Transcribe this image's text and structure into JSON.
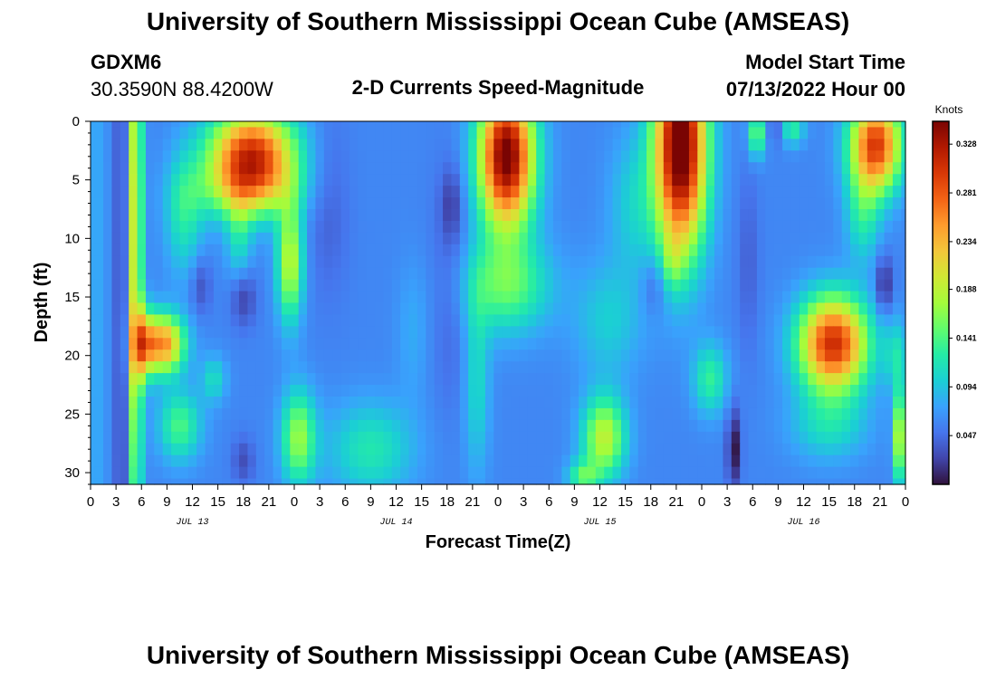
{
  "header": {
    "title": "University of Southern Mississippi Ocean Cube (AMSEAS)",
    "station": "GDXM6",
    "coords": "30.3590N  88.4200W",
    "plot_title": "2-D Currents Speed-Magnitude",
    "start_label": "Model Start Time",
    "start_value": "07/13/2022 Hour 00"
  },
  "footer": {
    "title": "University of Southern Mississippi Ocean Cube (AMSEAS)"
  },
  "colors": {
    "colormap": [
      "#30123b",
      "#4145ab",
      "#4675ed",
      "#39a2fc",
      "#1bcfd4",
      "#24eca6",
      "#61fc6c",
      "#a4fc3b",
      "#d1e834",
      "#f3c63a",
      "#fe9b2d",
      "#f36315",
      "#d93806",
      "#b11901",
      "#7a0403"
    ]
  },
  "chart_data": {
    "type": "heatmap",
    "title": "2-D Currents Speed-Magnitude",
    "xlabel": "Forecast Time(Z)",
    "ylabel": "Depth (ft)",
    "x_range_hours": [
      0,
      96
    ],
    "y_range_ft": [
      0,
      31
    ],
    "y_ticks": [
      0,
      5,
      10,
      15,
      20,
      25,
      30
    ],
    "y_tick_labels": [
      "0",
      "5",
      "10",
      "15",
      "20",
      "25",
      "30"
    ],
    "x_tick_hours": [
      0,
      3,
      6,
      9,
      12,
      15,
      18,
      21,
      24,
      27,
      30,
      33,
      36,
      39,
      42,
      45,
      48,
      51,
      54,
      57,
      60,
      63,
      66,
      69,
      72,
      75,
      78,
      81,
      84,
      87,
      90,
      93,
      96
    ],
    "x_tick_labels": [
      "0",
      "3",
      "6",
      "9",
      "12",
      "15",
      "18",
      "21",
      "0",
      "3",
      "6",
      "9",
      "12",
      "15",
      "18",
      "21",
      "0",
      "3",
      "6",
      "9",
      "12",
      "15",
      "18",
      "21",
      "0",
      "3",
      "6",
      "9",
      "12",
      "15",
      "18",
      "21",
      "0"
    ],
    "date_labels": [
      {
        "hour": 12,
        "text": "JUL 13"
      },
      {
        "hour": 36,
        "text": "JUL 14"
      },
      {
        "hour": 60,
        "text": "JUL 15"
      },
      {
        "hour": 84,
        "text": "JUL 16"
      }
    ],
    "colorbar": {
      "label": "Knots",
      "vmin": 0.0,
      "vmax": 0.35,
      "ticks": [
        0.047,
        0.094,
        0.141,
        0.188,
        0.234,
        0.281,
        0.328
      ],
      "tick_labels": [
        "0.047",
        "0.094",
        "0.141",
        "0.188",
        "0.234",
        "0.281",
        "0.328"
      ]
    },
    "grid": {
      "n_time": 97,
      "n_depth": 32,
      "depth_step_ft": 1,
      "time_step_hours": 1,
      "value_model": "approximate speed field (knots) read from the image as additive features: base + sum of amp*exp(-((t-t0)/st)^2-((d-d0)/sd)^2)",
      "base": 0.06,
      "features": [
        {
          "t0": 0.5,
          "st": 1.5,
          "d0": 15,
          "sd": 60,
          "amp": 0.02
        },
        {
          "t0": 4,
          "st": 1.2,
          "d0": 15,
          "sd": 60,
          "amp": -0.04
        },
        {
          "t0": 5.2,
          "st": 0.9,
          "d0": 10,
          "sd": 30,
          "amp": 0.16
        },
        {
          "t0": 6.2,
          "st": 1.2,
          "d0": 19,
          "sd": 3,
          "amp": 0.12
        },
        {
          "t0": 8.5,
          "st": 2.5,
          "d0": 19,
          "sd": 2.5,
          "amp": 0.2
        },
        {
          "t0": 11,
          "st": 2.2,
          "d0": 8,
          "sd": 5,
          "amp": 0.06
        },
        {
          "t0": 13,
          "st": 1.2,
          "d0": 14,
          "sd": 2.5,
          "amp": -0.03
        },
        {
          "t0": 10.5,
          "st": 2.5,
          "d0": 26,
          "sd": 3,
          "amp": 0.08
        },
        {
          "t0": 14.5,
          "st": 1.5,
          "d0": 22,
          "sd": 2,
          "amp": 0.05
        },
        {
          "t0": 19,
          "st": 5.0,
          "d0": 3,
          "sd": 4,
          "amp": 0.25
        },
        {
          "t0": 18,
          "st": 6.0,
          "d0": 6,
          "sd": 2.5,
          "amp": 0.06
        },
        {
          "t0": 18,
          "st": 1.5,
          "d0": 15,
          "sd": 2.5,
          "amp": -0.04
        },
        {
          "t0": 18,
          "st": 1.3,
          "d0": 29,
          "sd": 2.0,
          "amp": -0.03
        },
        {
          "t0": 17.5,
          "st": 1.5,
          "d0": 10,
          "sd": 4.0,
          "amp": 0.05
        },
        {
          "t0": 23.5,
          "st": 1.5,
          "d0": 12,
          "sd": 5,
          "amp": 0.13
        },
        {
          "t0": 24.5,
          "st": 2.0,
          "d0": 27,
          "sd": 4,
          "amp": 0.11
        },
        {
          "t0": 28,
          "st": 2.5,
          "d0": 7,
          "sd": 8,
          "amp": -0.02
        },
        {
          "t0": 33,
          "st": 5.0,
          "d0": 28,
          "sd": 4,
          "amp": 0.06
        },
        {
          "t0": 38,
          "st": 2.0,
          "d0": 18,
          "sd": 6,
          "amp": 0.02
        },
        {
          "t0": 42.5,
          "st": 2.5,
          "d0": 14,
          "sd": 10,
          "amp": -0.02
        },
        {
          "t0": 42.5,
          "st": 1.2,
          "d0": 7,
          "sd": 3,
          "amp": -0.03
        },
        {
          "t0": 45.5,
          "st": 1.5,
          "d0": 22,
          "sd": 8,
          "amp": 0.05
        },
        {
          "t0": 49,
          "st": 3.2,
          "d0": 3,
          "sd": 6,
          "amp": 0.3
        },
        {
          "t0": 49,
          "st": 5.0,
          "d0": 14,
          "sd": 4,
          "amp": 0.09
        },
        {
          "t0": 60.5,
          "st": 2.5,
          "d0": 27,
          "sd": 3.5,
          "amp": 0.13
        },
        {
          "t0": 58,
          "st": 1.8,
          "d0": 30.5,
          "sd": 1.5,
          "amp": 0.08
        },
        {
          "t0": 61,
          "st": 4.0,
          "d0": 17,
          "sd": 5,
          "amp": 0.04
        },
        {
          "t0": 64,
          "st": 3.0,
          "d0": 7,
          "sd": 6,
          "amp": 0.04
        },
        {
          "t0": 69.5,
          "st": 3.0,
          "d0": 2,
          "sd": 9,
          "amp": 0.32
        },
        {
          "t0": 68.5,
          "st": 1.3,
          "d0": 12,
          "sd": 2.5,
          "amp": 0.04
        },
        {
          "t0": 66.5,
          "st": 1.5,
          "d0": 14,
          "sd": 2.5,
          "amp": -0.03
        },
        {
          "t0": 73,
          "st": 2.0,
          "d0": 22,
          "sd": 3,
          "amp": 0.07
        },
        {
          "t0": 75.8,
          "st": 0.8,
          "d0": 28,
          "sd": 3.5,
          "amp": -0.06
        },
        {
          "t0": 77.5,
          "st": 1.3,
          "d0": 12,
          "sd": 8,
          "amp": -0.02
        },
        {
          "t0": 78.5,
          "st": 1.0,
          "d0": 1,
          "sd": 2,
          "amp": 0.1
        },
        {
          "t0": 81,
          "st": 1.2,
          "d0": 0.5,
          "sd": 1.5,
          "amp": -0.04
        },
        {
          "t0": 82.5,
          "st": 1.5,
          "d0": 0.5,
          "sd": 1.5,
          "amp": 0.08
        },
        {
          "t0": 87.5,
          "st": 4.0,
          "d0": 19,
          "sd": 4,
          "amp": 0.25
        },
        {
          "t0": 87,
          "st": 4.5,
          "d0": 26,
          "sd": 3,
          "amp": 0.05
        },
        {
          "t0": 92.5,
          "st": 3.0,
          "d0": 2,
          "sd": 4,
          "amp": 0.24
        },
        {
          "t0": 91,
          "st": 2.0,
          "d0": 8,
          "sd": 4,
          "amp": 0.06
        },
        {
          "t0": 93.5,
          "st": 1.0,
          "d0": 14,
          "sd": 2.5,
          "amp": -0.05
        },
        {
          "t0": 95.5,
          "st": 0.8,
          "d0": 27,
          "sd": 4,
          "amp": 0.16
        },
        {
          "t0": 95,
          "st": 1.5,
          "d0": 20,
          "sd": 3,
          "amp": 0.05
        }
      ]
    }
  }
}
